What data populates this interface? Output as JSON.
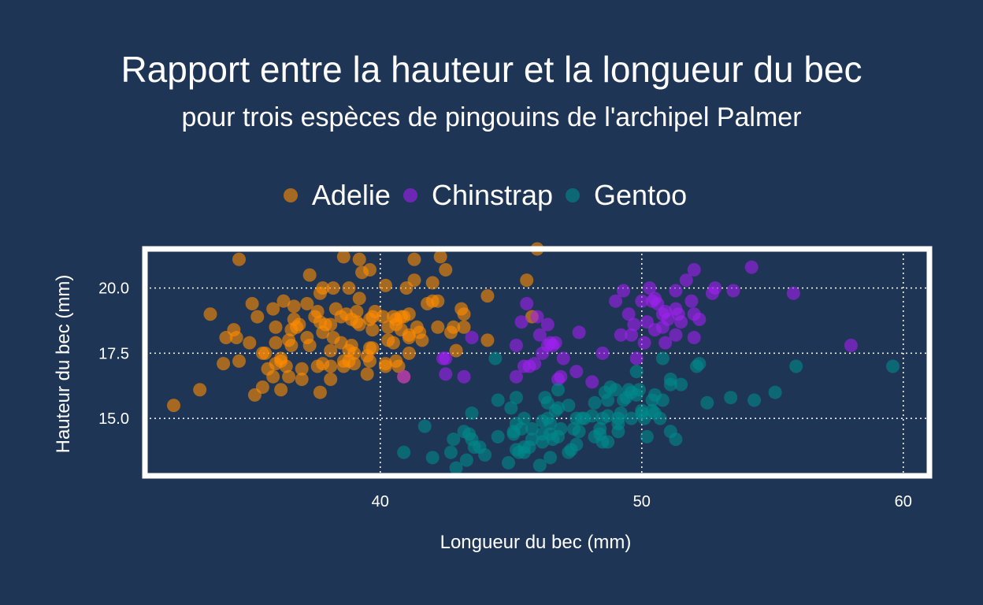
{
  "chart_data": {
    "type": "scatter",
    "title": "Rapport entre la hauteur et la longueur du bec",
    "subtitle": "pour trois espèces de pingouins de l'archipel Palmer",
    "xlabel": "Longueur du bec (mm)",
    "ylabel": "Hauteur du bec (mm)",
    "xlim": [
      31,
      61
    ],
    "ylim": [
      12.8,
      21.5
    ],
    "x_ticks": [
      "40",
      "50",
      "60"
    ],
    "y_ticks": [
      "15.0",
      "17.5",
      "20.0"
    ],
    "grid": true,
    "legend_position": "top",
    "series": [
      {
        "name": "Adelie",
        "color": "#ff8c00",
        "points": [
          [
            32.1,
            15.5
          ],
          [
            33.1,
            16.1
          ],
          [
            33.5,
            19.0
          ],
          [
            34.0,
            17.1
          ],
          [
            34.1,
            18.1
          ],
          [
            34.4,
            18.4
          ],
          [
            34.5,
            18.1
          ],
          [
            34.6,
            21.1
          ],
          [
            34.6,
            17.2
          ],
          [
            35.0,
            17.9
          ],
          [
            35.1,
            19.4
          ],
          [
            35.2,
            15.9
          ],
          [
            35.3,
            18.9
          ],
          [
            35.5,
            16.2
          ],
          [
            35.5,
            17.5
          ],
          [
            35.6,
            17.5
          ],
          [
            35.7,
            16.9
          ],
          [
            35.9,
            19.2
          ],
          [
            35.9,
            16.6
          ],
          [
            36.0,
            17.1
          ],
          [
            36.0,
            17.9
          ],
          [
            36.0,
            18.5
          ],
          [
            36.2,
            16.1
          ],
          [
            36.2,
            17.2
          ],
          [
            36.2,
            17.3
          ],
          [
            36.3,
            19.5
          ],
          [
            36.4,
            17.0
          ],
          [
            36.5,
            16.6
          ],
          [
            36.5,
            18.0
          ],
          [
            36.6,
            17.8
          ],
          [
            36.6,
            18.4
          ],
          [
            36.7,
            18.8
          ],
          [
            36.7,
            19.3
          ],
          [
            36.8,
            18.5
          ],
          [
            36.9,
            18.6
          ],
          [
            37.0,
            16.9
          ],
          [
            37.0,
            16.5
          ],
          [
            37.2,
            18.1
          ],
          [
            37.2,
            19.4
          ],
          [
            37.3,
            17.8
          ],
          [
            37.3,
            20.5
          ],
          [
            37.5,
            18.9
          ],
          [
            37.6,
            17.0
          ],
          [
            37.6,
            19.1
          ],
          [
            37.7,
            16.0
          ],
          [
            37.7,
            18.7
          ],
          [
            37.7,
            19.8
          ],
          [
            37.8,
            17.1
          ],
          [
            37.8,
            18.3
          ],
          [
            37.8,
            20.0
          ],
          [
            37.9,
            18.6
          ],
          [
            38.1,
            16.5
          ],
          [
            38.1,
            17.6
          ],
          [
            38.1,
            18.6
          ],
          [
            38.1,
            17.0
          ],
          [
            38.2,
            18.1
          ],
          [
            38.2,
            20.0
          ],
          [
            38.3,
            19.2
          ],
          [
            38.5,
            17.9
          ],
          [
            38.5,
            18.9
          ],
          [
            38.6,
            17.2
          ],
          [
            38.6,
            21.2
          ],
          [
            38.6,
            17.0
          ],
          [
            38.7,
            19.0
          ],
          [
            38.8,
            17.2
          ],
          [
            38.8,
            17.6
          ],
          [
            38.8,
            20.0
          ],
          [
            38.9,
            17.8
          ],
          [
            38.9,
            18.8
          ],
          [
            39.0,
            17.1
          ],
          [
            39.0,
            17.5
          ],
          [
            39.1,
            18.7
          ],
          [
            39.1,
            19.1
          ],
          [
            39.2,
            18.6
          ],
          [
            39.2,
            19.6
          ],
          [
            39.2,
            21.1
          ],
          [
            39.3,
            20.6
          ],
          [
            39.5,
            16.7
          ],
          [
            39.5,
            17.4
          ],
          [
            39.6,
            17.2
          ],
          [
            39.6,
            17.7
          ],
          [
            39.6,
            18.8
          ],
          [
            39.6,
            20.7
          ],
          [
            39.7,
            17.7
          ],
          [
            39.7,
            18.4
          ],
          [
            39.7,
            18.9
          ],
          [
            39.8,
            19.1
          ],
          [
            40.1,
            18.9
          ],
          [
            40.2,
            17.0
          ],
          [
            40.2,
            17.1
          ],
          [
            40.2,
            20.1
          ],
          [
            40.3,
            18.0
          ],
          [
            40.3,
            18.5
          ],
          [
            40.5,
            17.9
          ],
          [
            40.5,
            18.9
          ],
          [
            40.6,
            17.2
          ],
          [
            40.6,
            18.6
          ],
          [
            40.6,
            18.8
          ],
          [
            40.7,
            17.0
          ],
          [
            40.8,
            18.4
          ],
          [
            40.8,
            18.9
          ],
          [
            40.9,
            16.6
          ],
          [
            40.9,
            18.9
          ],
          [
            41.0,
            20.0
          ],
          [
            41.1,
            17.5
          ],
          [
            41.1,
            18.1
          ],
          [
            41.1,
            18.2
          ],
          [
            41.1,
            19.0
          ],
          [
            41.3,
            20.3
          ],
          [
            41.3,
            21.1
          ],
          [
            41.4,
            18.5
          ],
          [
            41.5,
            18.3
          ],
          [
            41.6,
            18.0
          ],
          [
            41.8,
            19.4
          ],
          [
            42.0,
            19.5
          ],
          [
            42.0,
            20.2
          ],
          [
            42.2,
            18.5
          ],
          [
            42.2,
            19.5
          ],
          [
            42.3,
            21.2
          ],
          [
            42.5,
            20.7
          ],
          [
            42.7,
            18.3
          ],
          [
            42.8,
            18.5
          ],
          [
            42.9,
            17.6
          ],
          [
            43.1,
            19.2
          ],
          [
            43.2,
            18.5
          ],
          [
            43.2,
            19.0
          ],
          [
            44.1,
            18.0
          ],
          [
            44.1,
            19.7
          ],
          [
            45.6,
            20.3
          ],
          [
            45.8,
            18.9
          ],
          [
            46.0,
            21.5
          ]
        ]
      },
      {
        "name": "Chinstrap",
        "color": "#a020f0",
        "points": [
          [
            40.9,
            16.6
          ],
          [
            42.4,
            17.3
          ],
          [
            42.5,
            16.7
          ],
          [
            42.5,
            17.3
          ],
          [
            43.2,
            16.6
          ],
          [
            43.5,
            18.1
          ],
          [
            45.2,
            16.6
          ],
          [
            45.2,
            17.8
          ],
          [
            45.4,
            18.7
          ],
          [
            45.5,
            17.0
          ],
          [
            45.6,
            19.4
          ],
          [
            45.7,
            17.0
          ],
          [
            45.9,
            17.1
          ],
          [
            46.0,
            18.9
          ],
          [
            46.1,
            18.2
          ],
          [
            46.2,
            17.5
          ],
          [
            46.4,
            17.8
          ],
          [
            46.4,
            18.6
          ],
          [
            46.5,
            17.9
          ],
          [
            46.6,
            17.8
          ],
          [
            46.7,
            17.9
          ],
          [
            46.8,
            16.5
          ],
          [
            46.9,
            16.6
          ],
          [
            47.0,
            17.3
          ],
          [
            47.5,
            16.8
          ],
          [
            47.6,
            18.3
          ],
          [
            48.1,
            16.4
          ],
          [
            48.5,
            17.5
          ],
          [
            49.0,
            19.5
          ],
          [
            49.2,
            18.2
          ],
          [
            49.3,
            19.9
          ],
          [
            49.5,
            19.0
          ],
          [
            49.6,
            18.2
          ],
          [
            49.7,
            18.6
          ],
          [
            49.8,
            17.3
          ],
          [
            50.0,
            19.5
          ],
          [
            50.1,
            17.9
          ],
          [
            50.2,
            18.7
          ],
          [
            50.3,
            20.0
          ],
          [
            50.4,
            19.5
          ],
          [
            50.5,
            18.4
          ],
          [
            50.5,
            19.6
          ],
          [
            50.6,
            19.4
          ],
          [
            50.8,
            18.5
          ],
          [
            50.8,
            19.0
          ],
          [
            50.9,
            17.9
          ],
          [
            50.9,
            19.1
          ],
          [
            51.0,
            18.8
          ],
          [
            51.3,
            18.2
          ],
          [
            51.3,
            19.2
          ],
          [
            51.3,
            19.9
          ],
          [
            51.4,
            19.0
          ],
          [
            51.5,
            18.7
          ],
          [
            51.7,
            20.3
          ],
          [
            51.9,
            19.5
          ],
          [
            52.0,
            18.1
          ],
          [
            52.0,
            19.0
          ],
          [
            52.0,
            20.7
          ],
          [
            52.2,
            18.8
          ],
          [
            52.7,
            19.8
          ],
          [
            52.8,
            20.0
          ],
          [
            53.5,
            19.9
          ],
          [
            54.2,
            20.8
          ],
          [
            55.8,
            19.8
          ],
          [
            58.0,
            17.8
          ]
        ]
      },
      {
        "name": "Gentoo",
        "color": "#008b8b",
        "points": [
          [
            40.9,
            13.7
          ],
          [
            41.7,
            14.7
          ],
          [
            42.0,
            13.5
          ],
          [
            42.7,
            13.7
          ],
          [
            42.8,
            14.2
          ],
          [
            42.9,
            13.1
          ],
          [
            43.2,
            14.5
          ],
          [
            43.3,
            13.4
          ],
          [
            43.4,
            14.4
          ],
          [
            43.5,
            14.2
          ],
          [
            43.5,
            15.2
          ],
          [
            43.6,
            13.9
          ],
          [
            43.8,
            13.9
          ],
          [
            44.0,
            13.6
          ],
          [
            44.4,
            17.3
          ],
          [
            44.5,
            14.3
          ],
          [
            44.5,
            15.7
          ],
          [
            44.9,
            13.3
          ],
          [
            45.0,
            15.4
          ],
          [
            45.1,
            14.5
          ],
          [
            45.1,
            14.4
          ],
          [
            45.2,
            13.8
          ],
          [
            45.2,
            14.8
          ],
          [
            45.2,
            15.8
          ],
          [
            45.3,
            13.7
          ],
          [
            45.4,
            14.6
          ],
          [
            45.5,
            13.7
          ],
          [
            45.5,
            13.9
          ],
          [
            45.5,
            15.0
          ],
          [
            45.7,
            13.9
          ],
          [
            45.8,
            14.2
          ],
          [
            45.8,
            14.6
          ],
          [
            46.1,
            13.2
          ],
          [
            46.2,
            14.1
          ],
          [
            46.2,
            14.4
          ],
          [
            46.2,
            14.9
          ],
          [
            46.3,
            15.8
          ],
          [
            46.4,
            15.0
          ],
          [
            46.4,
            15.6
          ],
          [
            46.5,
            13.5
          ],
          [
            46.5,
            14.4
          ],
          [
            46.5,
            14.8
          ],
          [
            46.6,
            14.2
          ],
          [
            46.7,
            15.3
          ],
          [
            46.8,
            14.3
          ],
          [
            46.8,
            15.4
          ],
          [
            46.8,
            16.1
          ],
          [
            46.9,
            14.6
          ],
          [
            47.2,
            13.7
          ],
          [
            47.2,
            15.5
          ],
          [
            47.3,
            13.8
          ],
          [
            47.4,
            14.6
          ],
          [
            47.5,
            14.0
          ],
          [
            47.5,
            15.0
          ],
          [
            47.6,
            14.5
          ],
          [
            47.7,
            15.0
          ],
          [
            47.8,
            15.0
          ],
          [
            48.1,
            15.1
          ],
          [
            48.2,
            14.3
          ],
          [
            48.2,
            15.6
          ],
          [
            48.4,
            14.4
          ],
          [
            48.4,
            14.6
          ],
          [
            48.5,
            14.1
          ],
          [
            48.5,
            15.0
          ],
          [
            48.6,
            16.0
          ],
          [
            48.7,
            14.1
          ],
          [
            48.7,
            15.1
          ],
          [
            48.7,
            15.7
          ],
          [
            48.8,
            16.2
          ],
          [
            49.0,
            16.1
          ],
          [
            49.1,
            14.5
          ],
          [
            49.1,
            14.8
          ],
          [
            49.1,
            15.0
          ],
          [
            49.2,
            15.2
          ],
          [
            49.3,
            15.7
          ],
          [
            49.4,
            15.8
          ],
          [
            49.5,
            16.1
          ],
          [
            49.6,
            15.0
          ],
          [
            49.6,
            16.0
          ],
          [
            49.8,
            15.9
          ],
          [
            49.8,
            16.8
          ],
          [
            49.9,
            16.1
          ],
          [
            50.0,
            15.2
          ],
          [
            50.0,
            15.3
          ],
          [
            50.1,
            15.0
          ],
          [
            50.2,
            14.3
          ],
          [
            50.4,
            15.3
          ],
          [
            50.4,
            15.7
          ],
          [
            50.5,
            15.2
          ],
          [
            50.5,
            15.9
          ],
          [
            50.7,
            15.0
          ],
          [
            50.8,
            15.7
          ],
          [
            50.8,
            17.3
          ],
          [
            51.1,
            14.5
          ],
          [
            51.1,
            16.3
          ],
          [
            51.1,
            16.5
          ],
          [
            51.3,
            14.2
          ],
          [
            51.5,
            16.3
          ],
          [
            52.1,
            17.0
          ],
          [
            52.2,
            17.1
          ],
          [
            52.5,
            15.6
          ],
          [
            53.4,
            15.8
          ],
          [
            54.3,
            15.7
          ],
          [
            55.1,
            16.0
          ],
          [
            55.9,
            17.0
          ],
          [
            59.6,
            17.0
          ]
        ]
      }
    ]
  }
}
